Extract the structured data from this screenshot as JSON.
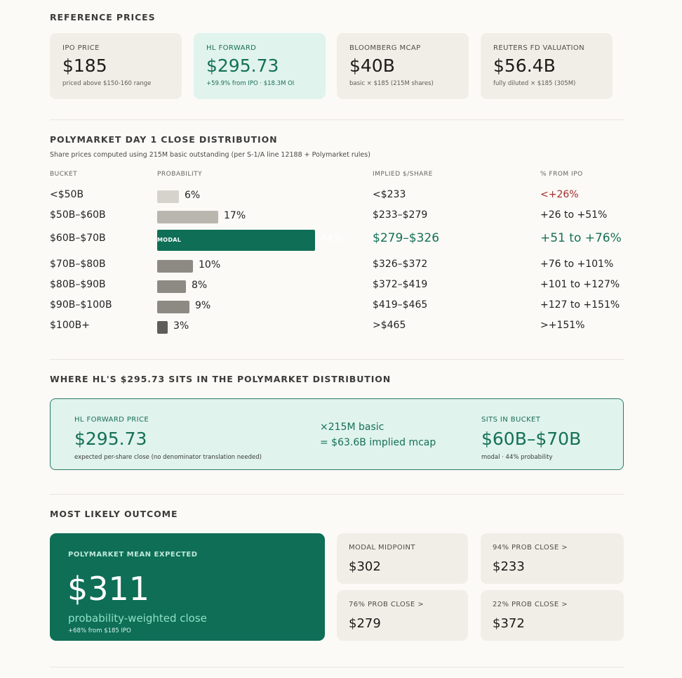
{
  "reference": {
    "title": "REFERENCE PRICES",
    "cards": [
      {
        "label": "IPO PRICE",
        "value": "$185",
        "sub": "priced above $150-160 range"
      },
      {
        "label": "HL FORWARD",
        "value": "$295.73",
        "sub": "+59.9% from IPO · $18.3M OI"
      },
      {
        "label": "BLOOMBERG MCAP",
        "value": "$40B",
        "sub": "basic × $185 (215M shares)"
      },
      {
        "label": "REUTERS FD VALUATION",
        "value": "$56.4B",
        "sub": "fully diluted × $185 (305M)"
      }
    ]
  },
  "distribution": {
    "title": "POLYMARKET DAY 1 CLOSE DISTRIBUTION",
    "subtitle": "Share prices computed using 215M basic outstanding (per S-1/A line 12188 + Polymarket rules)",
    "columns": [
      "BUCKET",
      "PROBABILITY",
      "IMPLIED $/SHARE",
      "% FROM IPO"
    ],
    "modal_tag": "MODAL",
    "rows": [
      {
        "bucket": "<$50B",
        "prob": 6,
        "prob_label": "6%",
        "implied": "<$233",
        "from_ipo": "<+26%",
        "color": "#d6d3cd"
      },
      {
        "bucket": "$50B–$60B",
        "prob": 17,
        "prob_label": "17%",
        "implied": "$233–$279",
        "from_ipo": "+26 to +51%",
        "color": "#b9b6ae"
      },
      {
        "bucket": "$60B–$70B",
        "prob": 44,
        "prob_label": "44%",
        "implied": "$279–$326",
        "from_ipo": "+51 to +76%",
        "color": "#0e6e56"
      },
      {
        "bucket": "$70B–$80B",
        "prob": 10,
        "prob_label": "10%",
        "implied": "$326–$372",
        "from_ipo": "+76 to +101%",
        "color": "#8c8a83"
      },
      {
        "bucket": "$80B–$90B",
        "prob": 8,
        "prob_label": "8%",
        "implied": "$372–$419",
        "from_ipo": "+101 to +127%",
        "color": "#8c8a83"
      },
      {
        "bucket": "$90B–$100B",
        "prob": 9,
        "prob_label": "9%",
        "implied": "$419–$465",
        "from_ipo": "+127 to +151%",
        "color": "#8c8a83"
      },
      {
        "bucket": "$100B+",
        "prob": 3,
        "prob_label": "3%",
        "implied": ">$465",
        "from_ipo": ">+151%",
        "color": "#5f5d58"
      }
    ]
  },
  "position": {
    "title": "WHERE HL'S $295.73 SITS IN THE POLYMARKET DISTRIBUTION",
    "left_label": "HL FORWARD PRICE",
    "left_value": "$295.73",
    "left_sub": "expected per-share close (no denominator translation needed)",
    "mid_line1": "×215M basic",
    "mid_line2": "= $63.6B implied mcap",
    "right_label": "SITS IN BUCKET",
    "right_value": "$60B–$70B",
    "right_sub": "modal · 44% probability"
  },
  "outcome": {
    "title": "MOST LIKELY OUTCOME",
    "mean_label": "POLYMARKET MEAN EXPECTED",
    "mean_value": "$311",
    "mean_desc": "probability-weighted close",
    "mean_sub": "+68% from $185 IPO",
    "cards": [
      {
        "label": "MODAL MIDPOINT",
        "value": "$302"
      },
      {
        "label": "94% PROB CLOSE >",
        "value": "$233"
      },
      {
        "label": "76% PROB CLOSE >",
        "value": "$279"
      },
      {
        "label": "22% PROB CLOSE >",
        "value": "$372"
      }
    ]
  }
}
